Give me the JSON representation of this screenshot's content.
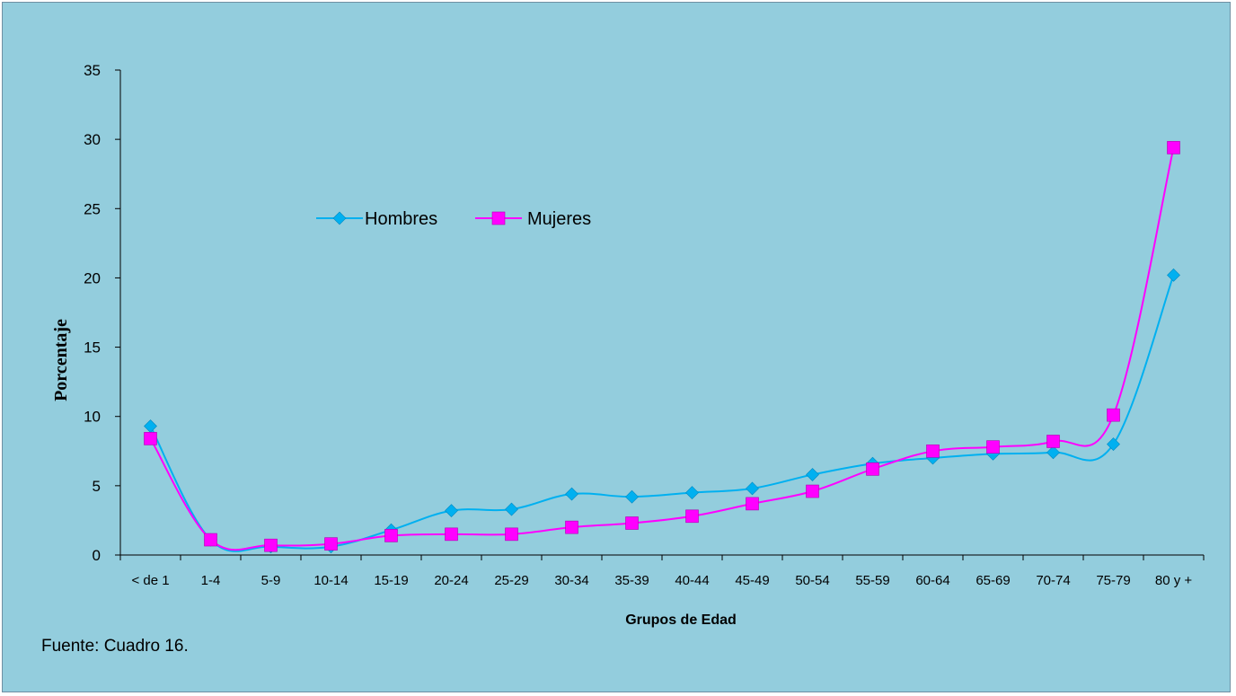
{
  "chart_data": {
    "type": "line",
    "categories": [
      "< de 1",
      "1-4",
      "5-9",
      "10-14",
      "15-19",
      "20-24",
      "25-29",
      "30-34",
      "35-39",
      "40-44",
      "45-49",
      "50-54",
      "55-59",
      "60-64",
      "65-69",
      "70-74",
      "75-79",
      "80 y +"
    ],
    "series": [
      {
        "name": "Hombres",
        "color": "#00B0F0",
        "marker": "diamond",
        "values": [
          9.3,
          1.1,
          0.6,
          0.6,
          1.8,
          3.2,
          3.3,
          4.4,
          4.2,
          4.5,
          4.8,
          5.8,
          6.6,
          7.0,
          7.3,
          7.4,
          8.0,
          20.2
        ]
      },
      {
        "name": "Mujeres",
        "color": "#FF00FF",
        "marker": "square",
        "values": [
          8.4,
          1.1,
          0.7,
          0.8,
          1.4,
          1.5,
          1.5,
          2.0,
          2.3,
          2.8,
          3.7,
          4.6,
          6.2,
          7.5,
          7.8,
          8.2,
          10.1,
          29.4
        ]
      }
    ],
    "xlabel": "Grupos de Edad",
    "ylabel": "Porcentaje",
    "ylim": [
      0,
      35
    ],
    "yticks": [
      0,
      5,
      10,
      15,
      20,
      25,
      30,
      35
    ],
    "grid": false,
    "legend_position": "upper-left-center",
    "smooth": true
  },
  "footer": {
    "source": "Fuente: Cuadro 16."
  },
  "colors": {
    "background": "#93CDDD",
    "axis": "#000000"
  }
}
